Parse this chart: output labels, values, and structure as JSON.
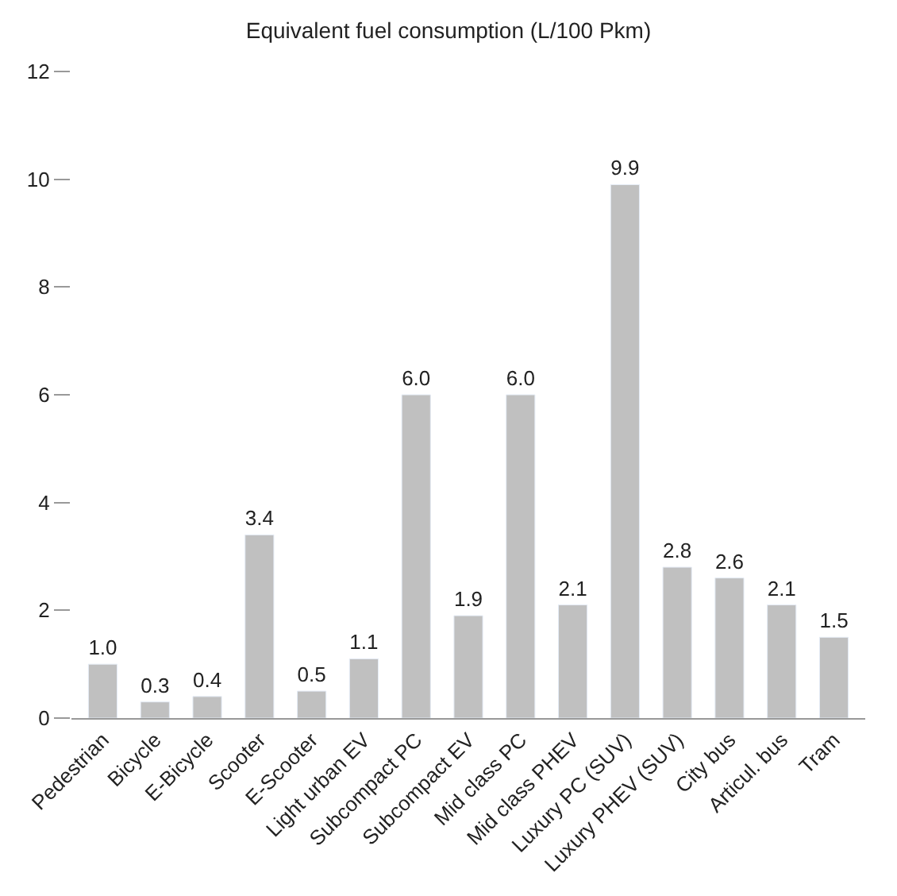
{
  "chart_data": {
    "type": "bar",
    "title": "Equivalent fuel consumption (L/100 Pkm)",
    "categories": [
      "Pedestrian",
      "Bicycle",
      "E-Bicycle",
      "Scooter",
      "E-Scooter",
      "Light urban EV",
      "Subcompact PC",
      "Subcompact EV",
      "Mid class PC",
      "Mid class PHEV",
      "Luxury PC (SUV)",
      "Luxury PHEV (SUV)",
      "City bus",
      "Articul. bus",
      "Tram"
    ],
    "values": [
      1.0,
      0.3,
      0.4,
      3.4,
      0.5,
      1.1,
      6.0,
      1.9,
      6.0,
      2.1,
      9.9,
      2.8,
      2.6,
      2.1,
      1.5
    ],
    "value_labels": [
      "1.0",
      "0.3",
      "0.4",
      "3.4",
      "0.5",
      "1.1",
      "6.0",
      "1.9",
      "6.0",
      "2.1",
      "9.9",
      "2.8",
      "2.6",
      "2.1",
      "1.5"
    ],
    "color": "#c0c0c0",
    "ylim": [
      0,
      12
    ],
    "yticks": [
      0,
      2,
      4,
      6,
      8,
      10,
      12
    ]
  }
}
